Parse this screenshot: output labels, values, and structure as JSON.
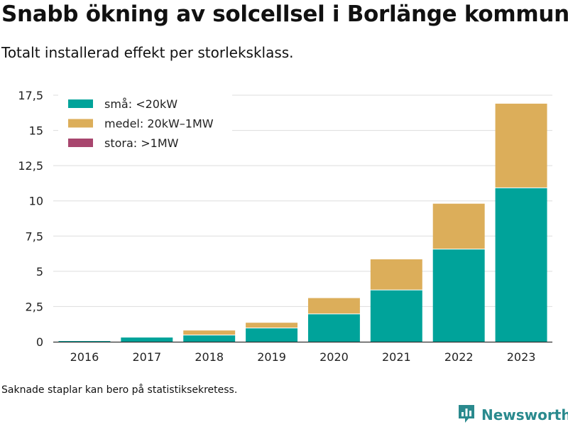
{
  "title": "Snabb ökning av solcellsel i Borlänge kommun",
  "subtitle": "Totalt installerad effekt per storleksklass.",
  "footnote": "Saknade staplar kan bero på statistiksekretess.",
  "brand": {
    "name": "Newsworthy",
    "logo_icon": "bar-chart-logo-icon",
    "color": "#2a8a8e"
  },
  "chart_data": {
    "type": "bar",
    "stacked": true,
    "categories": [
      "2016",
      "2017",
      "2018",
      "2019",
      "2020",
      "2021",
      "2022",
      "2023"
    ],
    "series": [
      {
        "name": "små: <20kW",
        "color": "#00a39a",
        "values": [
          0.05,
          0.3,
          0.45,
          0.95,
          1.95,
          3.65,
          6.55,
          10.9
        ]
      },
      {
        "name": "medel: 20kW–1MW",
        "color": "#dcae5a",
        "values": [
          0,
          0,
          0.35,
          0.4,
          1.15,
          2.2,
          3.25,
          6.0
        ]
      },
      {
        "name": "stora: >1MW",
        "color": "#a8466e",
        "values": [
          0,
          0,
          0,
          0,
          0,
          0,
          0,
          0
        ]
      }
    ],
    "ylim": [
      0,
      17.5
    ],
    "yticks": [
      "0",
      "2,5",
      "5",
      "7,5",
      "10",
      "12,5",
      "15",
      "17,5"
    ],
    "ytick_values": [
      0,
      2.5,
      5,
      7.5,
      10,
      12.5,
      15,
      17.5
    ],
    "xlabel": "",
    "ylabel": "",
    "grid": true,
    "legend": "top-left"
  }
}
